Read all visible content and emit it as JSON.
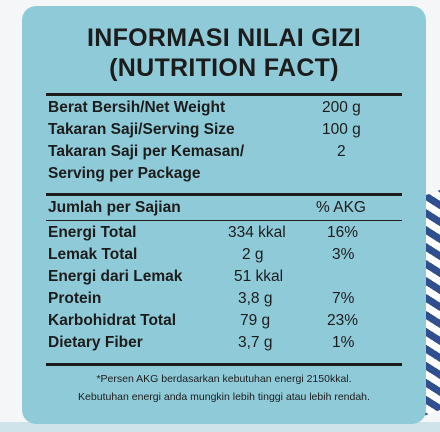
{
  "title_line1": "INFORMASI NILAI GIZI",
  "title_line2": "(NUTRITION FACT)",
  "info": {
    "net_weight_label": "Berat Bersih/Net Weight",
    "net_weight_value": "200 g",
    "serving_size_label": "Takaran Saji/Serving Size",
    "serving_size_value": "100 g",
    "servings_label_1": "Takaran Saji per Kemasan/",
    "servings_label_2": "Serving per Package",
    "servings_value": "2"
  },
  "table": {
    "header_label": "Jumlah per Sajian",
    "header_akg": "% AKG",
    "rows": [
      {
        "label": "Energi Total",
        "amount": "334 kkal",
        "akg": "16%"
      },
      {
        "label": "Lemak Total",
        "amount": "2 g",
        "akg": "3%"
      },
      {
        "label": "Energi dari Lemak",
        "amount": "51 kkal",
        "akg": ""
      },
      {
        "label": "Protein",
        "amount": "3,8 g",
        "akg": "7%"
      },
      {
        "label": "Karbohidrat Total",
        "amount": "79 g",
        "akg": "23%"
      },
      {
        "label": "Dietary Fiber",
        "amount": "3,7 g",
        "akg": "1%"
      }
    ]
  },
  "footnote_line1": "*Persen AKG berdasarkan kebutuhan energi 2150kkal.",
  "footnote_line2": "Kebutuhan energi anda mungkin lebih tinggi atau lebih rendah.",
  "colors": {
    "panel": "#8fcad8",
    "text": "#1c1c1c"
  }
}
